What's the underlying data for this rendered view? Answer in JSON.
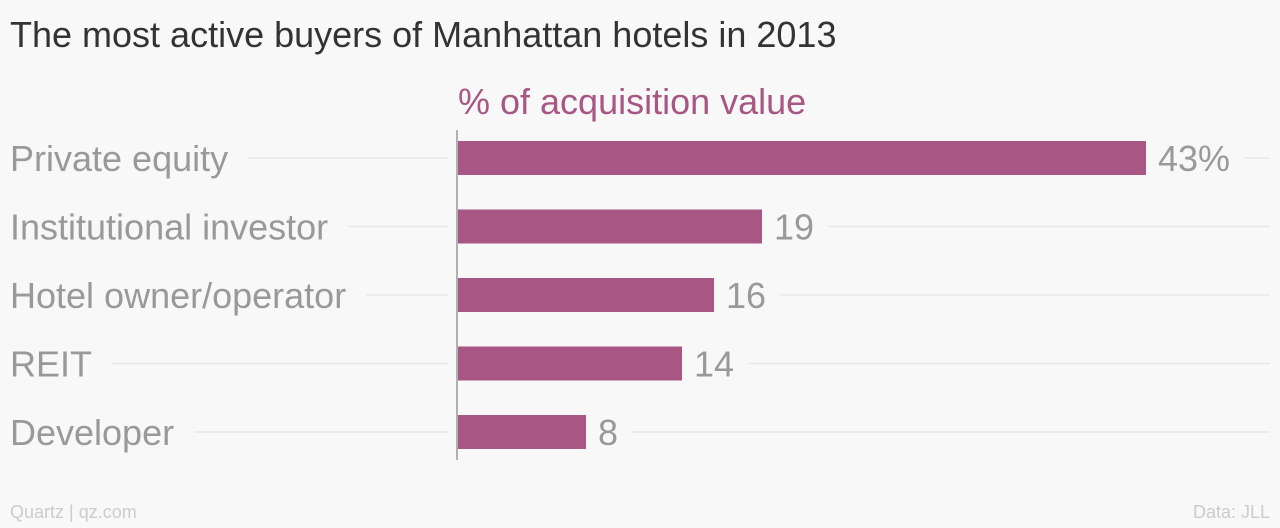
{
  "chart_data": {
    "type": "bar",
    "orientation": "horizontal",
    "title": "The most active buyers of Manhattan hotels in 2013",
    "subtitle": "% of acquisition value",
    "categories": [
      "Private equity",
      "Institutional investor",
      "Hotel owner/operator",
      "REIT",
      "Developer"
    ],
    "values": [
      43,
      19,
      16,
      14,
      8
    ],
    "value_labels": [
      "43%",
      "19",
      "16",
      "14",
      "8"
    ],
    "xlim": [
      0,
      43
    ],
    "grid": true,
    "legend": "none"
  },
  "colors": {
    "bar": "#a85684",
    "subtitle": "#a85684",
    "title": "#333333",
    "category_label": "#999999",
    "value_label": "#999999",
    "gridline": "#e8e8e8",
    "axis": "#999999",
    "footer": "#cccccc"
  },
  "footer": {
    "source_left": "Quartz | qz.com",
    "source_right": "Data: JLL"
  }
}
